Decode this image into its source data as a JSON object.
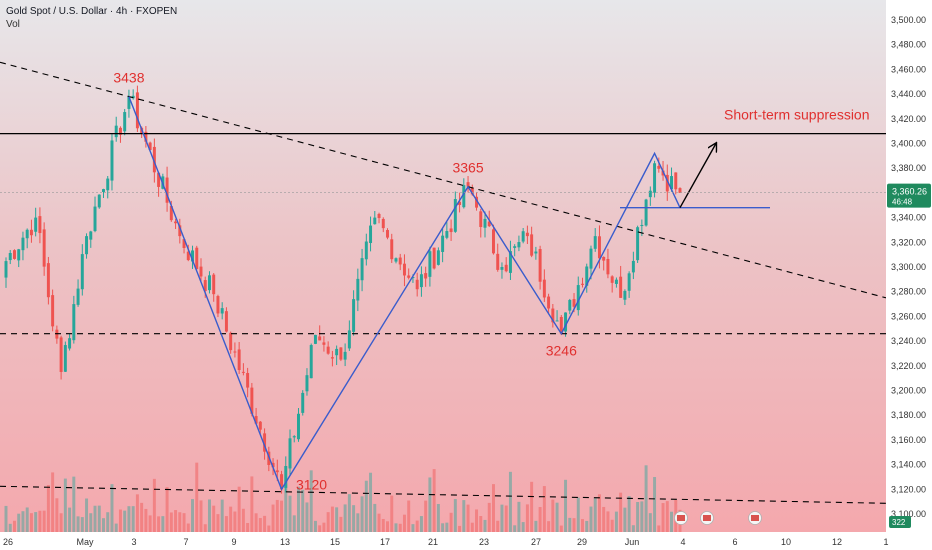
{
  "header": {
    "title": "Gold Spot / U.S. Dollar · 4h · FXOPEN",
    "vol_label": "Vol"
  },
  "colors": {
    "bull": "#26a69a",
    "bear": "#ef5350",
    "trend": "#3a5ccc",
    "annotation": "#e0302f",
    "bg_top": "#e7e7ea",
    "bg_bottom": "#f4a8ad"
  },
  "chart_data": {
    "type": "candlestick",
    "ylim": [
      3100,
      3505
    ],
    "y_ticks": [
      3100,
      3120,
      3140,
      3160,
      3180,
      3200,
      3220,
      3240,
      3260,
      3280,
      3300,
      3320,
      3340,
      3360,
      3380,
      3400,
      3420,
      3440,
      3460,
      3480,
      3500
    ],
    "y_tick_labels": [
      "3,100.00",
      "3,120.00",
      "3,140.00",
      "3,160.00",
      "3,180.00",
      "3,200.00",
      "3,220.00",
      "3,240.00",
      "3,260.00",
      "3,280.00",
      "3,300.00",
      "3,320.00",
      "3,340.00",
      "3,360.00",
      "3,380.00",
      "3,400.00",
      "3,420.00",
      "3,440.00",
      "3,460.00",
      "3,480.00",
      "3,500.00"
    ],
    "x_tick_labels": [
      "26",
      "May",
      "3",
      "7",
      "9",
      "13",
      "15",
      "17",
      "21",
      "23",
      "27",
      "29",
      "Jun",
      "4",
      "6",
      "10",
      "12",
      "1"
    ],
    "current_price": {
      "label": "3,360.26",
      "countdown": "46:48"
    },
    "volume_label": "322",
    "annotations": [
      {
        "text": "3438",
        "price": 3438
      },
      {
        "text": "3365",
        "price": 3365
      },
      {
        "text": "3246",
        "price": 3246
      },
      {
        "text": "3120",
        "price": 3120
      },
      {
        "text": "Short-term suppression",
        "price": 3408
      }
    ],
    "levels": {
      "resistance": 3408,
      "support": 3246,
      "short_line": 3348
    },
    "zigzag_prices": [
      3438,
      3120,
      3365,
      3246,
      3392,
      3348
    ],
    "projection": {
      "from": 3348,
      "to": 3400
    },
    "candles": {
      "segments": [
        {
          "from": 3300,
          "to": 3340
        },
        {
          "from": 3340,
          "to": 3215
        },
        {
          "from": 3215,
          "to": 3325
        },
        {
          "from": 3325,
          "to": 3438
        },
        {
          "from": 3438,
          "to": 3325
        },
        {
          "from": 3325,
          "to": 3278
        },
        {
          "from": 3278,
          "to": 3120
        },
        {
          "from": 3120,
          "to": 3245
        },
        {
          "from": 3245,
          "to": 3225
        },
        {
          "from": 3225,
          "to": 3340
        },
        {
          "from": 3340,
          "to": 3282
        },
        {
          "from": 3282,
          "to": 3365
        },
        {
          "from": 3365,
          "to": 3300
        },
        {
          "from": 3300,
          "to": 3325
        },
        {
          "from": 3325,
          "to": 3246
        },
        {
          "from": 3246,
          "to": 3325
        },
        {
          "from": 3325,
          "to": 3275
        },
        {
          "from": 3275,
          "to": 3384
        },
        {
          "from": 3384,
          "to": 3360
        }
      ],
      "counts": [
        8,
        6,
        6,
        10,
        12,
        8,
        16,
        8,
        6,
        8,
        10,
        12,
        8,
        6,
        8,
        8,
        6,
        8,
        6
      ]
    }
  }
}
